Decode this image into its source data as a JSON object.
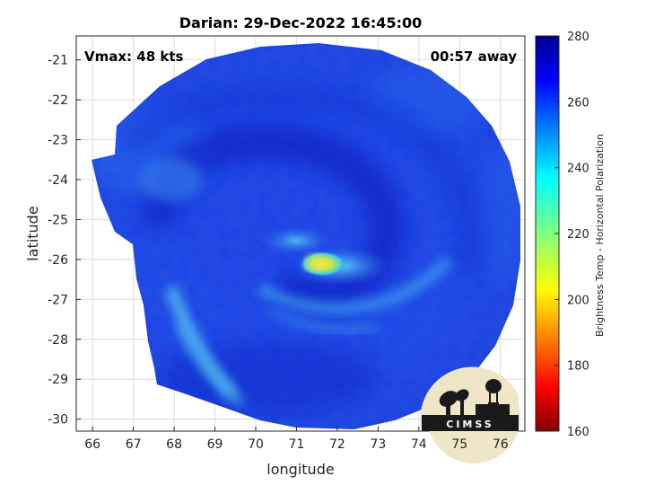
{
  "title": "Darian: 29-Dec-2022 16:45:00",
  "vmax_text": "Vmax: 48 kts",
  "time_away_text": "00:57 away",
  "xlabel": "longitude",
  "ylabel": "latitude",
  "x_ticks": [
    "66",
    "67",
    "68",
    "69",
    "70",
    "71",
    "72",
    "73",
    "74",
    "75",
    "76"
  ],
  "y_ticks": [
    "-21",
    "-22",
    "-23",
    "-24",
    "-25",
    "-26",
    "-27",
    "-28",
    "-29",
    "-30"
  ],
  "colorbar": {
    "label": "Brightness Temp - Horizontal Polarization",
    "ticks": [
      "280",
      "260",
      "240",
      "220",
      "200",
      "180",
      "160"
    ],
    "min": 160,
    "max": 280,
    "colormap": "jet"
  },
  "logo_text": "CIMSS",
  "colors": {
    "background_blue": "#1a3fe6",
    "deep_blue": "#0a1fb8",
    "warm_core": "#e8e83a",
    "cyan_band": "#4fc0f0",
    "logo_bg": "#efe6c8"
  },
  "chart_data": {
    "type": "heatmap",
    "title": "Darian: 29-Dec-2022 16:45:00",
    "xlabel": "longitude",
    "ylabel": "latitude",
    "xlim": [
      65.6,
      76.6
    ],
    "ylim": [
      -30.3,
      -20.4
    ],
    "storm_center": {
      "lon": 71.5,
      "lat": -26.1
    },
    "colorbar_range": [
      160,
      280
    ],
    "annotations": [
      "Vmax: 48 kts",
      "00:57 away"
    ],
    "grid": true
  }
}
